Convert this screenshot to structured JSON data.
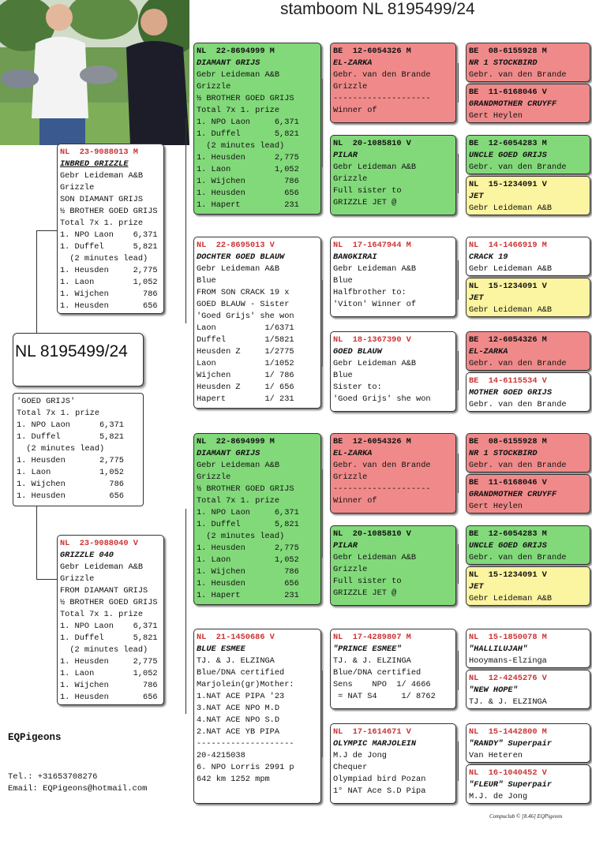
{
  "title": "stamboom NL 8195499/24",
  "subject": {
    "ring": "NL 8195499/24",
    "lines": [
      "'GOED GRIJS'",
      "Total 7x 1. prize",
      "1. NPO Laon      6,371",
      "1. Duffel        5,821",
      "  (2 minutes lead)",
      "1. Heusden       2,775",
      "1. Laon          1,052",
      "1. Wijchen         786",
      "1. Heusden         656"
    ]
  },
  "sire": {
    "ring_prefix": "NL",
    "ring": "23-9088013 M",
    "name": "INBRED GRIZZLE",
    "lines": [
      "Gebr Leideman A&B",
      "Grizzle",
      "SON DIAMANT GRIJS",
      "½ BROTHER GOED GRIJS",
      "Total 7x 1. prize",
      "1. NPO Laon    6,371",
      "1. Duffel      5,821",
      "  (2 minutes lead)",
      "1. Heusden     2,775",
      "1. Laon        1,052",
      "1. Wijchen       786",
      "1. Heusden       656"
    ]
  },
  "dam": {
    "ring_prefix": "NL",
    "ring": "23-9088040 V",
    "name": "GRIZZLE 040",
    "lines": [
      "Gebr Leideman A&B",
      "Grizzle",
      "FROM DIAMANT GRIJS",
      "½ BROTHER GOED GRIJS",
      "Total 7x 1. prize",
      "1. NPO Laon    6,371",
      "1. Duffel      5,821",
      "  (2 minutes lead)",
      "1. Heusden     2,775",
      "1. Laon        1,052",
      "1. Wijchen       786",
      "1. Heusden       656"
    ]
  },
  "gp": [
    {
      "ring": "NL  22-8694999 M",
      "name": "DIAMANT GRIJS",
      "lines": [
        "Gebr Leideman A&B",
        "Grizzle",
        "½ BROTHER GOED GRIJS",
        "Total 7x 1. prize",
        "1. NPO Laon     6,371",
        "1. Duffel       5,821",
        "  (2 minutes lead)",
        "1. Heusden      2,775",
        "1. Laon         1,052",
        "1. Wijchen        786",
        "1. Heusden        656",
        "1. Hapert         231"
      ]
    },
    {
      "ring": "NL  22-8695013 V",
      "name": "DOCHTER GOED BLAUW",
      "lines": [
        "Gebr Leideman A&B",
        "Blue",
        "FROM SON CRACK 19 x",
        "GOED BLAUW - Sister",
        "'Goed Grijs' she won",
        "Laon          1/6371",
        "Duffel        1/5821",
        "Heusden Z     1/2775",
        "Laon          1/1052",
        "Wijchen       1/ 786",
        "Heusden Z     1/ 656",
        "Hapert        1/ 231"
      ]
    },
    {
      "ring": "NL  22-8694999 M",
      "name": "DIAMANT GRIJS",
      "lines": [
        "Gebr Leideman A&B",
        "Grizzle",
        "½ BROTHER GOED GRIJS",
        "Total 7x 1. prize",
        "1. NPO Laon     6,371",
        "1. Duffel       5,821",
        "  (2 minutes lead)",
        "1. Heusden      2,775",
        "1. Laon         1,052",
        "1. Wijchen        786",
        "1. Heusden        656",
        "1. Hapert         231"
      ]
    },
    {
      "ring": "NL  21-1450686 V",
      "name": "BLUE ESMEE",
      "lines": [
        "TJ. & J. ELZINGA",
        "Blue/DNA certified",
        "",
        "Marjolein(gr)Mother:",
        "1.NAT ACE PIPA '23",
        "3.NAT ACE NPO M.D",
        "4.NAT ACE NPO S.D",
        "2.NAT ACE YB PIPA",
        "--------------------",
        "20-4215038",
        "6. NPO Lorris 2991 p",
        "642 km 1252 mpm"
      ]
    }
  ],
  "ggp": [
    {
      "ring": "BE  12-6054326 M",
      "name": "EL-ZARKA",
      "lines": [
        "Gebr. van den Brande",
        "Grizzle",
        "--------------------",
        "Winner of"
      ]
    },
    {
      "ring": "NL  20-1085810 V",
      "name": "PILAR",
      "lines": [
        "Gebr Leideman A&B",
        "Grizzle",
        "Full sister to",
        "GRIZZLE JET @"
      ]
    },
    {
      "ring": "NL  17-1647944 M",
      "name": "BANGKIRAI",
      "lines": [
        "Gebr Leideman A&B",
        "Blue",
        "Halfbrother to:",
        "'Viton' Winner of"
      ]
    },
    {
      "ring": "NL  18-1367390 V",
      "name": "GOED BLAUW",
      "lines": [
        "Gebr Leideman A&B",
        "Blue",
        "Sister to:",
        "'Goed Grijs' she won"
      ]
    },
    {
      "ring": "BE  12-6054326 M",
      "name": "EL-ZARKA",
      "lines": [
        "Gebr. van den Brande",
        "Grizzle",
        "--------------------",
        "Winner of"
      ]
    },
    {
      "ring": "NL  20-1085810 V",
      "name": "PILAR",
      "lines": [
        "Gebr Leideman A&B",
        "Grizzle",
        "Full sister to",
        "GRIZZLE JET @"
      ]
    },
    {
      "ring": "NL  17-4289807 M",
      "name": "\"PRINCE ESMEE\"",
      "lines": [
        "TJ. & J. ELZINGA",
        "Blue/DNA certified",
        "Sens    NPO  1/ 4666",
        " = NAT S4     1/ 8762"
      ]
    },
    {
      "ring": "NL  17-1614671 V",
      "name": "OLYMPIC MARJOLEIN",
      "lines": [
        "M.J de Jong",
        "Chequer",
        "Olympiad bird Pozan",
        "1° NAT Ace S.D Pipa"
      ]
    }
  ],
  "g4": [
    {
      "ring": "BE  08-6155928 M",
      "name": "NR 1 STOCKBIRD",
      "owner": "Gebr. van den Brande"
    },
    {
      "ring": "BE  11-6168046 V",
      "name": "GRANDMOTHER CRUYFF",
      "owner": "Gert Heylen"
    },
    {
      "ring": "BE  12-6054283 M",
      "name": "UNCLE GOED GRIJS",
      "owner": "Gebr. van den Brande"
    },
    {
      "ring": "NL  15-1234091 V",
      "name": "JET",
      "owner": "Gebr Leideman A&B"
    },
    {
      "ring": "NL  14-1466919 M",
      "name": "CRACK 19",
      "owner": "Gebr Leideman A&B"
    },
    {
      "ring": "NL  15-1234091 V",
      "name": "JET",
      "owner": "Gebr Leideman A&B"
    },
    {
      "ring": "BE  12-6054326 M",
      "name": "EL-ZARKA",
      "owner": "Gebr. van den Brande"
    },
    {
      "ring": "BE  14-6115534 V",
      "name": "MOTHER GOED GRIJS",
      "owner": "Gebr. van den Brande"
    },
    {
      "ring": "BE  08-6155928 M",
      "name": "NR 1 STOCKBIRD",
      "owner": "Gebr. van den Brande"
    },
    {
      "ring": "BE  11-6168046 V",
      "name": "GRANDMOTHER CRUYFF",
      "owner": "Gert Heylen"
    },
    {
      "ring": "BE  12-6054283 M",
      "name": "UNCLE GOED GRIJS",
      "owner": "Gebr. van den Brande"
    },
    {
      "ring": "NL  15-1234091 V",
      "name": "JET",
      "owner": "Gebr Leideman A&B"
    },
    {
      "ring": "NL  15-1850078 M",
      "name": "\"HALLILUJAH\"",
      "owner": "Hooymans-Elzinga"
    },
    {
      "ring": "NL  12-4245276 V",
      "name": "\"NEW HOPE\"",
      "owner": "TJ. & J. ELZINGA"
    },
    {
      "ring": "NL  15-1442800 M",
      "name": "\"RANDY\" Superpair",
      "owner": "Van Heteren"
    },
    {
      "ring": "NL  16-1040452 V",
      "name": "\"FLEUR\" Superpair",
      "owner": "M.J. de Jong"
    }
  ],
  "brand": "EQPigeons",
  "contact": {
    "tel": "Tel.: +31653708276",
    "email": "Email: EQPigeons@hotmail.com"
  },
  "footer": "Compuclub © [8.46]  EQPigeons"
}
